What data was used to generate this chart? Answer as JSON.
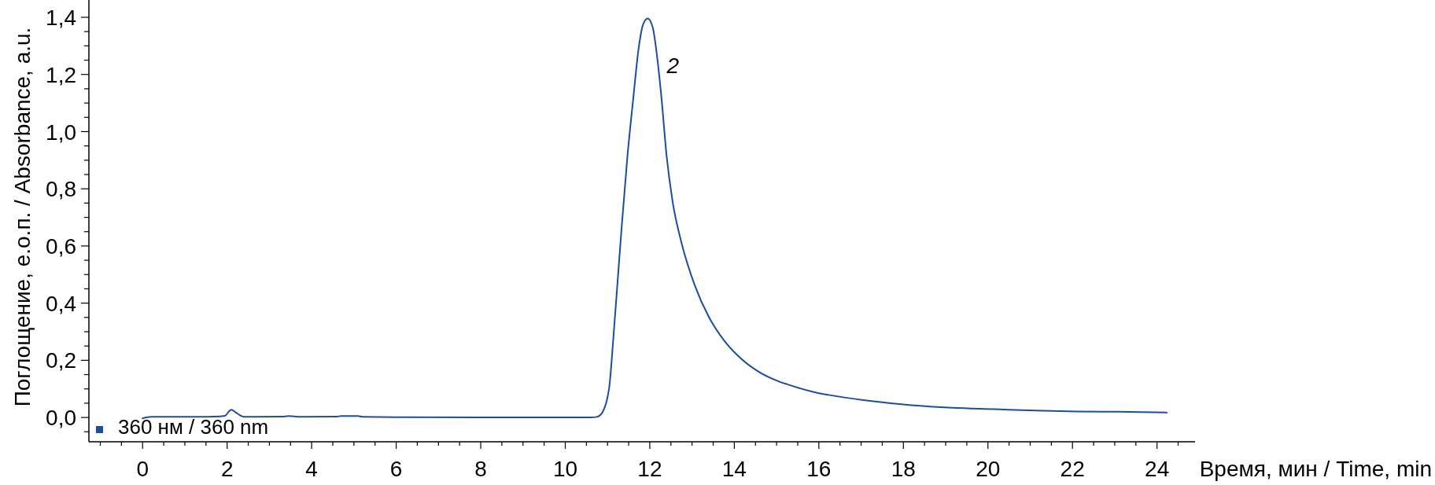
{
  "chart_data": {
    "type": "line",
    "xlabel": "Время, мин / Time, min",
    "ylabel": "Поглощение, е.о.п. / Absorbance, a.u.",
    "xlim": [
      -1.27,
      24.9
    ],
    "ylim": [
      -0.085,
      1.455
    ],
    "xticks": [
      {
        "value": -1,
        "label": null
      },
      {
        "value": -0.5,
        "label": null
      },
      0,
      {
        "value": 0.5,
        "label": null
      },
      {
        "value": 1,
        "label": null
      },
      {
        "value": 1.5,
        "label": null
      },
      2,
      {
        "value": 2.5,
        "label": null
      },
      {
        "value": 3,
        "label": null
      },
      {
        "value": 3.5,
        "label": null
      },
      4,
      {
        "value": 4.5,
        "label": null
      },
      {
        "value": 5,
        "label": null
      },
      {
        "value": 5.5,
        "label": null
      },
      6,
      {
        "value": 6.5,
        "label": null
      },
      {
        "value": 7,
        "label": null
      },
      {
        "value": 7.5,
        "label": null
      },
      8,
      {
        "value": 8.5,
        "label": null
      },
      {
        "value": 9,
        "label": null
      },
      {
        "value": 9.5,
        "label": null
      },
      10,
      {
        "value": 10.5,
        "label": null
      },
      {
        "value": 11,
        "label": null
      },
      {
        "value": 11.5,
        "label": null
      },
      12,
      {
        "value": 12.5,
        "label": null
      },
      {
        "value": 13,
        "label": null
      },
      {
        "value": 13.5,
        "label": null
      },
      14,
      {
        "value": 14.5,
        "label": null
      },
      {
        "value": 15,
        "label": null
      },
      {
        "value": 15.5,
        "label": null
      },
      16,
      {
        "value": 16.5,
        "label": null
      },
      {
        "value": 17,
        "label": null
      },
      {
        "value": 17.5,
        "label": null
      },
      18,
      {
        "value": 18.5,
        "label": null
      },
      {
        "value": 19,
        "label": null
      },
      {
        "value": 19.5,
        "label": null
      },
      20,
      {
        "value": 20.5,
        "label": null
      },
      {
        "value": 21,
        "label": null
      },
      {
        "value": 21.5,
        "label": null
      },
      22,
      {
        "value": 22.5,
        "label": null
      },
      {
        "value": 23,
        "label": null
      },
      {
        "value": 23.5,
        "label": null
      },
      24,
      {
        "value": 24.5,
        "label": null
      }
    ],
    "yticks": [
      {
        "value": -0.05,
        "label": null
      },
      {
        "value": 0,
        "label": "0,0"
      },
      {
        "value": 0.05,
        "label": null
      },
      {
        "value": 0.1,
        "label": null
      },
      {
        "value": 0.15,
        "label": null
      },
      {
        "value": 0.2,
        "label": "0,2"
      },
      {
        "value": 0.25,
        "label": null
      },
      {
        "value": 0.3,
        "label": null
      },
      {
        "value": 0.35,
        "label": null
      },
      {
        "value": 0.4,
        "label": "0,4"
      },
      {
        "value": 0.45,
        "label": null
      },
      {
        "value": 0.5,
        "label": null
      },
      {
        "value": 0.55,
        "label": null
      },
      {
        "value": 0.6,
        "label": "0,6"
      },
      {
        "value": 0.65,
        "label": null
      },
      {
        "value": 0.7,
        "label": null
      },
      {
        "value": 0.75,
        "label": null
      },
      {
        "value": 0.8,
        "label": "0,8"
      },
      {
        "value": 0.85,
        "label": null
      },
      {
        "value": 0.9,
        "label": null
      },
      {
        "value": 0.95,
        "label": null
      },
      {
        "value": 1.0,
        "label": "1,0"
      },
      {
        "value": 1.05,
        "label": null
      },
      {
        "value": 1.1,
        "label": null
      },
      {
        "value": 1.15,
        "label": null
      },
      {
        "value": 1.2,
        "label": "1,2"
      },
      {
        "value": 1.25,
        "label": null
      },
      {
        "value": 1.3,
        "label": null
      },
      {
        "value": 1.35,
        "label": null
      },
      {
        "value": 1.4,
        "label": "1,4"
      }
    ],
    "legend": "bottom left",
    "annotations": [
      {
        "text": "2",
        "x": 11.95,
        "y": 1.396
      }
    ],
    "series": [
      {
        "name": "360 нм / 360 nm",
        "color": "#1a4da6",
        "x": [
          0,
          0.2,
          1.0,
          1.7,
          1.95,
          2.05,
          2.1,
          2.2,
          2.3,
          2.4,
          3.3,
          3.45,
          3.6,
          3.7,
          4.6,
          4.7,
          5.1,
          5.2,
          6.0,
          8,
          10,
          10.6,
          10.75,
          10.875,
          11.04,
          11.14,
          11.24,
          11.34,
          11.47,
          11.61,
          11.74,
          11.84,
          11.95,
          12.07,
          12.17,
          12.27,
          12.4,
          12.54,
          12.74,
          13.07,
          13.4,
          13.74,
          14.07,
          14.53,
          15.07,
          15.25,
          16.0,
          16.23,
          17.21,
          18.19,
          19.16,
          20.14,
          21.12,
          22.1,
          23.08,
          24.23
        ],
        "values": [
          -0.003,
          0.002,
          0.002,
          0.003,
          0.006,
          0.022,
          0.027,
          0.018,
          0.008,
          0.002,
          0.003,
          0.005,
          0.004,
          0.002,
          0.003,
          0.005,
          0.005,
          0.002,
          0.001,
          0.0,
          0.0,
          0.0,
          0.002,
          0.017,
          0.105,
          0.282,
          0.479,
          0.676,
          0.912,
          1.118,
          1.296,
          1.374,
          1.396,
          1.364,
          1.266,
          1.128,
          0.912,
          0.755,
          0.617,
          0.46,
          0.351,
          0.273,
          0.218,
          0.164,
          0.125,
          0.116,
          0.085,
          0.079,
          0.058,
          0.043,
          0.034,
          0.029,
          0.024,
          0.021,
          0.02,
          0.017
        ]
      }
    ]
  }
}
